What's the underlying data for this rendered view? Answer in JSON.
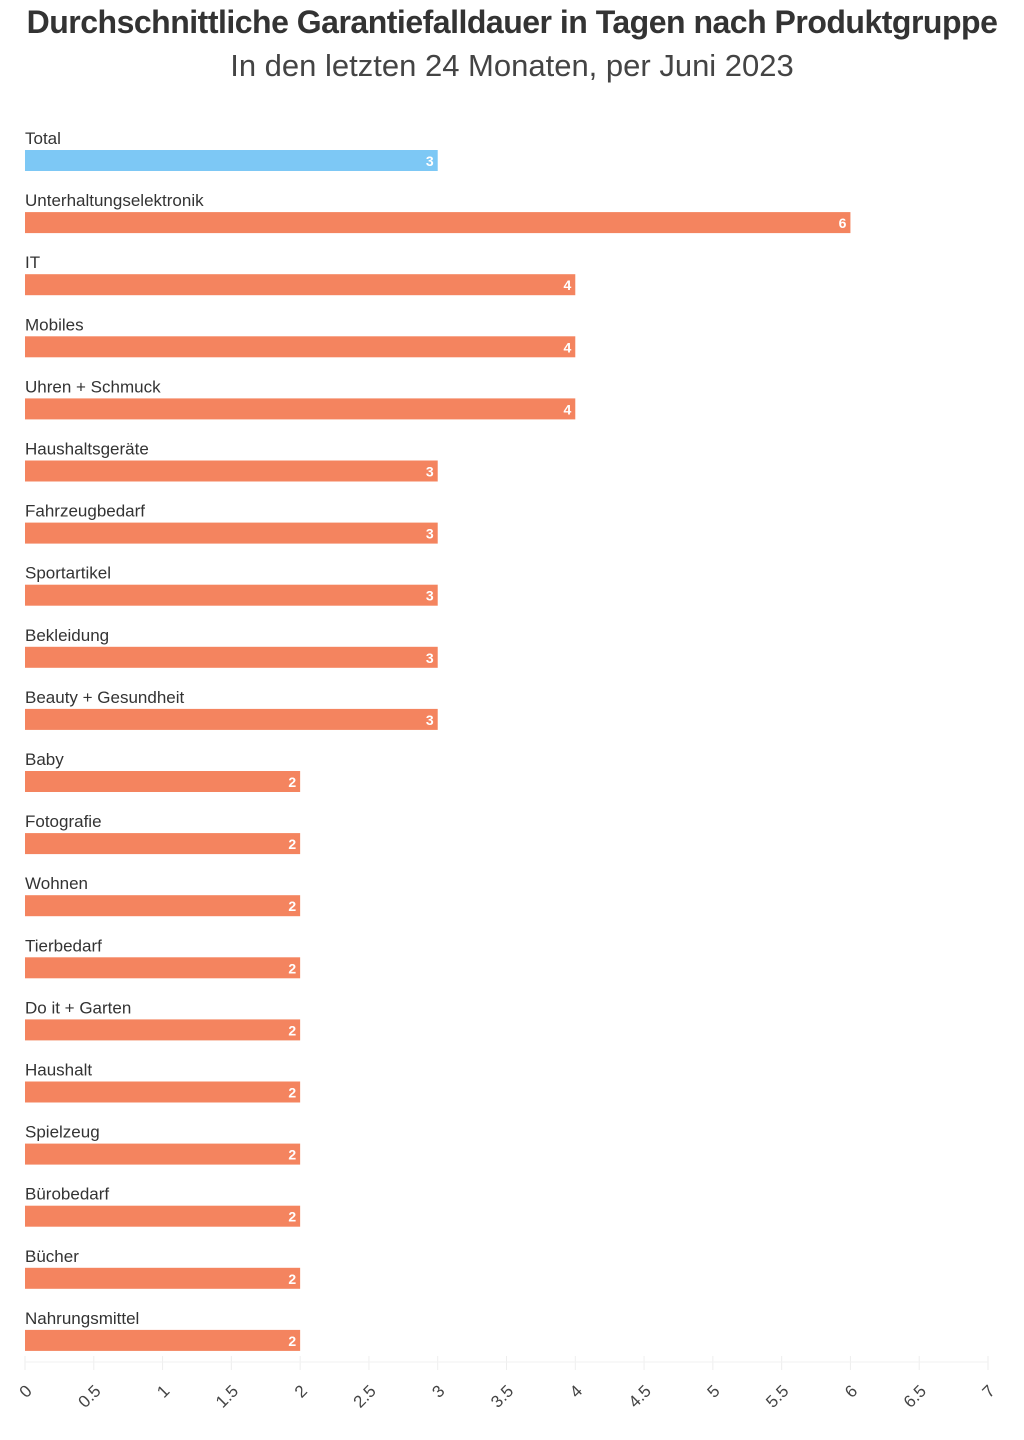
{
  "chart_data": {
    "type": "bar",
    "orientation": "horizontal",
    "title": "Durchschnittliche Garantiefalldauer in Tagen nach Produktgruppe",
    "subtitle": "In den letzten 24 Monaten, per Juni 2023",
    "xlabel": "",
    "ylabel": "",
    "xlim": [
      0,
      7
    ],
    "xticks": [
      "0",
      "0.5",
      "1",
      "1.5",
      "2",
      "2.5",
      "3",
      "3.5",
      "4",
      "4.5",
      "5",
      "5.5",
      "6",
      "6.5",
      "7"
    ],
    "grid": true,
    "categories": [
      "Total",
      "Unterhaltungselektronik",
      "IT",
      "Mobiles",
      "Uhren + Schmuck",
      "Haushaltsgeräte",
      "Fahrzeugbedarf",
      "Sportartikel",
      "Bekleidung",
      "Beauty + Gesundheit",
      "Baby",
      "Fotografie",
      "Wohnen",
      "Tierbedarf",
      "Do it + Garten",
      "Haushalt",
      "Spielzeug",
      "Bürobedarf",
      "Bücher",
      "Nahrungsmittel"
    ],
    "values": [
      3,
      6,
      4,
      4,
      4,
      3,
      3,
      3,
      3,
      3,
      2,
      2,
      2,
      2,
      2,
      2,
      2,
      2,
      2,
      2
    ],
    "colors": {
      "total": "#7dc8f5",
      "default": "#f4845f"
    }
  }
}
